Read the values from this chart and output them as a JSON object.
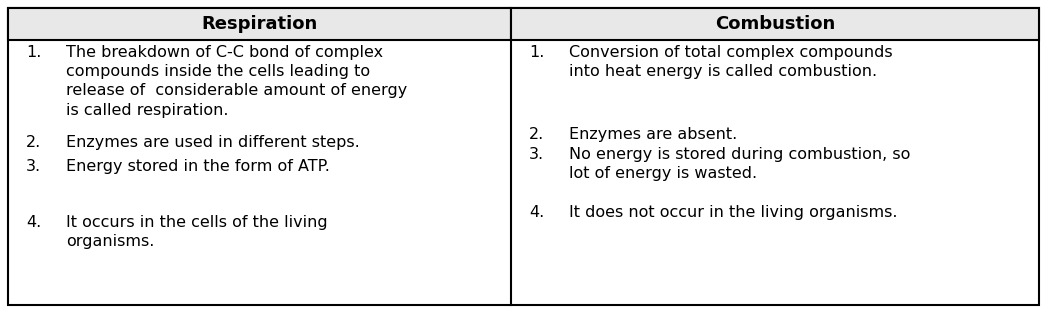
{
  "title_left": "Respiration",
  "title_right": "Combustion",
  "col1_items": [
    {
      "num": "1.",
      "text": "The breakdown of C-C bond of complex\ncompounds inside the cells leading to\nrelease of  considerable amount of energy\nis called respiration."
    },
    {
      "num": "2.",
      "text": "Enzymes are used in different steps."
    },
    {
      "num": "3.",
      "text": "Energy stored in the form of ATP."
    },
    {
      "num": "4.",
      "text": "It occurs in the cells of the living\norganisms."
    }
  ],
  "col2_items": [
    {
      "num": "1.",
      "text": "Conversion of total complex compounds\ninto heat energy is called combustion."
    },
    {
      "num": "2.",
      "text": "Enzymes are absent."
    },
    {
      "num": "3.",
      "text": "No energy is stored during combustion, so\nlot of energy is wasted."
    },
    {
      "num": "4.",
      "text": "It does not occur in the living organisms."
    }
  ],
  "bg_color": "#ffffff",
  "header_bg": "#e8e8e8",
  "border_color": "#000000",
  "text_color": "#000000",
  "font_size": 11.5,
  "header_font_size": 13,
  "fig_width": 10.47,
  "fig_height": 3.13,
  "dpi": 100
}
